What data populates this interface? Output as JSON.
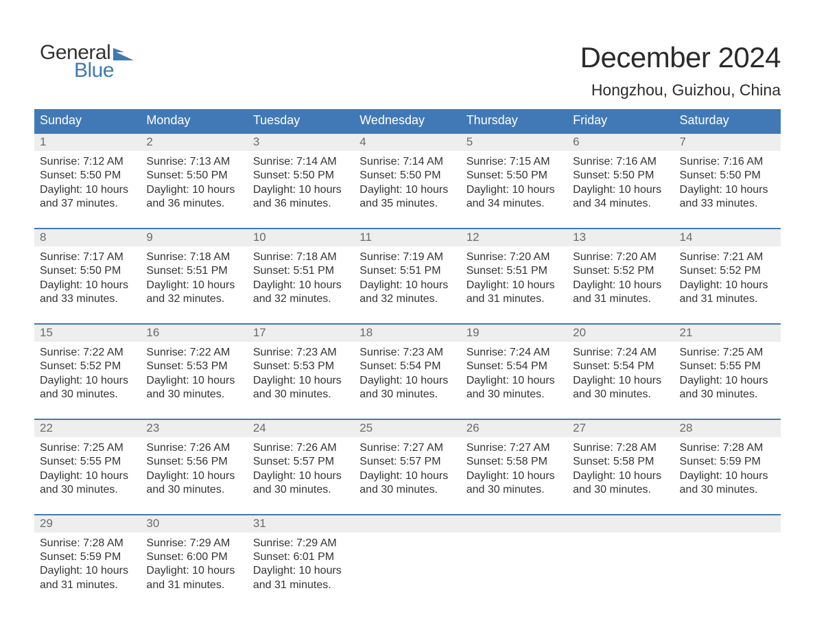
{
  "brand": {
    "word1": "General",
    "word2": "Blue"
  },
  "title": "December 2024",
  "location": "Hongzhou, Guizhou, China",
  "colors": {
    "header_bg": "#4179b6",
    "header_text": "#ffffff",
    "daynum_bg": "#eeeeee",
    "daynum_text": "#6a6a6a",
    "body_text": "#333333",
    "week_border": "#4179b6",
    "logo_blue": "#3d79b4",
    "page_bg": "#ffffff"
  },
  "typography": {
    "month_title_fontsize": 42,
    "location_fontsize": 23,
    "day_header_fontsize": 18,
    "day_num_fontsize": 17,
    "body_fontsize": 16,
    "font_family": "Arial"
  },
  "day_labels": [
    "Sunday",
    "Monday",
    "Tuesday",
    "Wednesday",
    "Thursday",
    "Friday",
    "Saturday"
  ],
  "weeks": [
    [
      {
        "num": "1",
        "sunrise": "Sunrise: 7:12 AM",
        "sunset": "Sunset: 5:50 PM",
        "dl1": "Daylight: 10 hours",
        "dl2": "and 37 minutes."
      },
      {
        "num": "2",
        "sunrise": "Sunrise: 7:13 AM",
        "sunset": "Sunset: 5:50 PM",
        "dl1": "Daylight: 10 hours",
        "dl2": "and 36 minutes."
      },
      {
        "num": "3",
        "sunrise": "Sunrise: 7:14 AM",
        "sunset": "Sunset: 5:50 PM",
        "dl1": "Daylight: 10 hours",
        "dl2": "and 36 minutes."
      },
      {
        "num": "4",
        "sunrise": "Sunrise: 7:14 AM",
        "sunset": "Sunset: 5:50 PM",
        "dl1": "Daylight: 10 hours",
        "dl2": "and 35 minutes."
      },
      {
        "num": "5",
        "sunrise": "Sunrise: 7:15 AM",
        "sunset": "Sunset: 5:50 PM",
        "dl1": "Daylight: 10 hours",
        "dl2": "and 34 minutes."
      },
      {
        "num": "6",
        "sunrise": "Sunrise: 7:16 AM",
        "sunset": "Sunset: 5:50 PM",
        "dl1": "Daylight: 10 hours",
        "dl2": "and 34 minutes."
      },
      {
        "num": "7",
        "sunrise": "Sunrise: 7:16 AM",
        "sunset": "Sunset: 5:50 PM",
        "dl1": "Daylight: 10 hours",
        "dl2": "and 33 minutes."
      }
    ],
    [
      {
        "num": "8",
        "sunrise": "Sunrise: 7:17 AM",
        "sunset": "Sunset: 5:50 PM",
        "dl1": "Daylight: 10 hours",
        "dl2": "and 33 minutes."
      },
      {
        "num": "9",
        "sunrise": "Sunrise: 7:18 AM",
        "sunset": "Sunset: 5:51 PM",
        "dl1": "Daylight: 10 hours",
        "dl2": "and 32 minutes."
      },
      {
        "num": "10",
        "sunrise": "Sunrise: 7:18 AM",
        "sunset": "Sunset: 5:51 PM",
        "dl1": "Daylight: 10 hours",
        "dl2": "and 32 minutes."
      },
      {
        "num": "11",
        "sunrise": "Sunrise: 7:19 AM",
        "sunset": "Sunset: 5:51 PM",
        "dl1": "Daylight: 10 hours",
        "dl2": "and 32 minutes."
      },
      {
        "num": "12",
        "sunrise": "Sunrise: 7:20 AM",
        "sunset": "Sunset: 5:51 PM",
        "dl1": "Daylight: 10 hours",
        "dl2": "and 31 minutes."
      },
      {
        "num": "13",
        "sunrise": "Sunrise: 7:20 AM",
        "sunset": "Sunset: 5:52 PM",
        "dl1": "Daylight: 10 hours",
        "dl2": "and 31 minutes."
      },
      {
        "num": "14",
        "sunrise": "Sunrise: 7:21 AM",
        "sunset": "Sunset: 5:52 PM",
        "dl1": "Daylight: 10 hours",
        "dl2": "and 31 minutes."
      }
    ],
    [
      {
        "num": "15",
        "sunrise": "Sunrise: 7:22 AM",
        "sunset": "Sunset: 5:52 PM",
        "dl1": "Daylight: 10 hours",
        "dl2": "and 30 minutes."
      },
      {
        "num": "16",
        "sunrise": "Sunrise: 7:22 AM",
        "sunset": "Sunset: 5:53 PM",
        "dl1": "Daylight: 10 hours",
        "dl2": "and 30 minutes."
      },
      {
        "num": "17",
        "sunrise": "Sunrise: 7:23 AM",
        "sunset": "Sunset: 5:53 PM",
        "dl1": "Daylight: 10 hours",
        "dl2": "and 30 minutes."
      },
      {
        "num": "18",
        "sunrise": "Sunrise: 7:23 AM",
        "sunset": "Sunset: 5:54 PM",
        "dl1": "Daylight: 10 hours",
        "dl2": "and 30 minutes."
      },
      {
        "num": "19",
        "sunrise": "Sunrise: 7:24 AM",
        "sunset": "Sunset: 5:54 PM",
        "dl1": "Daylight: 10 hours",
        "dl2": "and 30 minutes."
      },
      {
        "num": "20",
        "sunrise": "Sunrise: 7:24 AM",
        "sunset": "Sunset: 5:54 PM",
        "dl1": "Daylight: 10 hours",
        "dl2": "and 30 minutes."
      },
      {
        "num": "21",
        "sunrise": "Sunrise: 7:25 AM",
        "sunset": "Sunset: 5:55 PM",
        "dl1": "Daylight: 10 hours",
        "dl2": "and 30 minutes."
      }
    ],
    [
      {
        "num": "22",
        "sunrise": "Sunrise: 7:25 AM",
        "sunset": "Sunset: 5:55 PM",
        "dl1": "Daylight: 10 hours",
        "dl2": "and 30 minutes."
      },
      {
        "num": "23",
        "sunrise": "Sunrise: 7:26 AM",
        "sunset": "Sunset: 5:56 PM",
        "dl1": "Daylight: 10 hours",
        "dl2": "and 30 minutes."
      },
      {
        "num": "24",
        "sunrise": "Sunrise: 7:26 AM",
        "sunset": "Sunset: 5:57 PM",
        "dl1": "Daylight: 10 hours",
        "dl2": "and 30 minutes."
      },
      {
        "num": "25",
        "sunrise": "Sunrise: 7:27 AM",
        "sunset": "Sunset: 5:57 PM",
        "dl1": "Daylight: 10 hours",
        "dl2": "and 30 minutes."
      },
      {
        "num": "26",
        "sunrise": "Sunrise: 7:27 AM",
        "sunset": "Sunset: 5:58 PM",
        "dl1": "Daylight: 10 hours",
        "dl2": "and 30 minutes."
      },
      {
        "num": "27",
        "sunrise": "Sunrise: 7:28 AM",
        "sunset": "Sunset: 5:58 PM",
        "dl1": "Daylight: 10 hours",
        "dl2": "and 30 minutes."
      },
      {
        "num": "28",
        "sunrise": "Sunrise: 7:28 AM",
        "sunset": "Sunset: 5:59 PM",
        "dl1": "Daylight: 10 hours",
        "dl2": "and 30 minutes."
      }
    ],
    [
      {
        "num": "29",
        "sunrise": "Sunrise: 7:28 AM",
        "sunset": "Sunset: 5:59 PM",
        "dl1": "Daylight: 10 hours",
        "dl2": "and 31 minutes."
      },
      {
        "num": "30",
        "sunrise": "Sunrise: 7:29 AM",
        "sunset": "Sunset: 6:00 PM",
        "dl1": "Daylight: 10 hours",
        "dl2": "and 31 minutes."
      },
      {
        "num": "31",
        "sunrise": "Sunrise: 7:29 AM",
        "sunset": "Sunset: 6:01 PM",
        "dl1": "Daylight: 10 hours",
        "dl2": "and 31 minutes."
      },
      {
        "empty": true
      },
      {
        "empty": true
      },
      {
        "empty": true
      },
      {
        "empty": true
      }
    ]
  ]
}
